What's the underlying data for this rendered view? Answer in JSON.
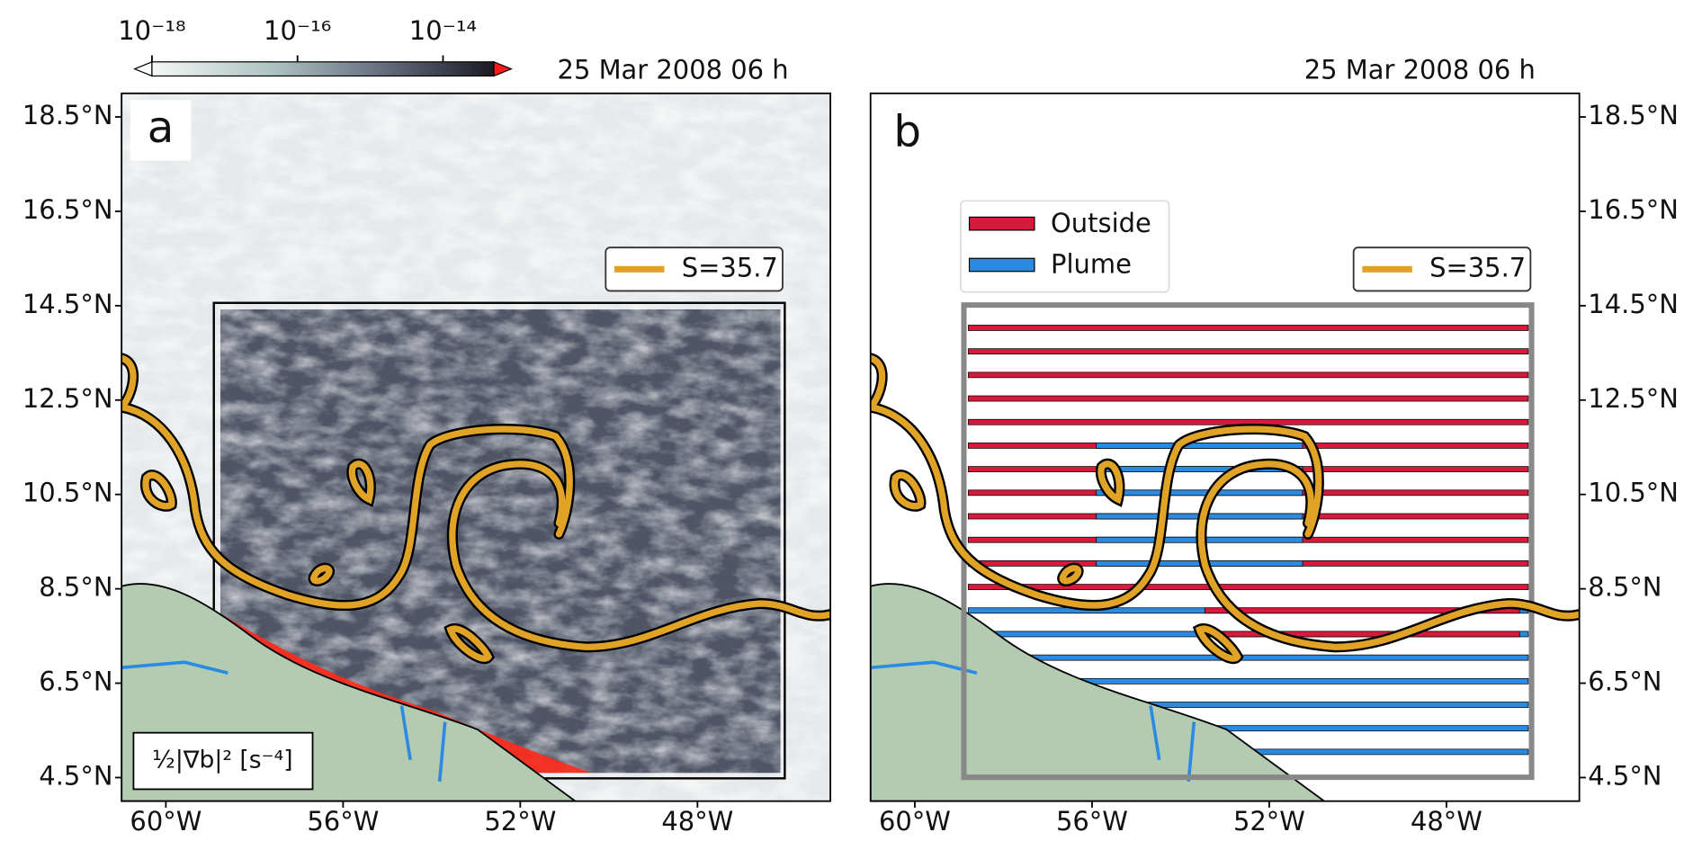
{
  "colorbar": {
    "label": "½|∇b|² [s⁻⁴]",
    "log": true,
    "lim": [
      1e-18,
      5e-14
    ],
    "ticks": [
      {
        "value": 1e-18,
        "label": "10⁻¹⁸"
      },
      {
        "value": 1e-16,
        "label": "10⁻¹⁶"
      },
      {
        "value": 1e-14,
        "label": "10⁻¹⁴"
      }
    ]
  },
  "panels": [
    {
      "label": "a",
      "date": "25 Mar 2008 06 h",
      "ytick_side": "left",
      "xlim": [
        -61,
        -45
      ],
      "ylim": [
        4,
        19
      ],
      "xticks": [
        {
          "value": -60,
          "label": "60°W"
        },
        {
          "value": -56,
          "label": "56°W"
        },
        {
          "value": -52,
          "label": "52°W"
        },
        {
          "value": -48,
          "label": "48°W"
        }
      ],
      "yticks": [
        {
          "value": 18.5,
          "label": "18.5°N"
        },
        {
          "value": 16.5,
          "label": "16.5°N"
        },
        {
          "value": 14.5,
          "label": "14.5°N"
        },
        {
          "value": 12.5,
          "label": "12.5°N"
        },
        {
          "value": 10.5,
          "label": "10.5°N"
        },
        {
          "value": 8.5,
          "label": "8.5°N"
        },
        {
          "value": 6.5,
          "label": "6.5°N"
        },
        {
          "value": 4.5,
          "label": "4.5°N"
        }
      ],
      "contour_legend": {
        "name": "S=35.7",
        "color": "#e0a326"
      }
    },
    {
      "label": "b",
      "date": "25 Mar 2008 06 h",
      "ytick_side": "right",
      "xlim": [
        -61,
        -45
      ],
      "ylim": [
        4,
        19
      ],
      "xticks": [
        {
          "value": -60,
          "label": "60°W"
        },
        {
          "value": -56,
          "label": "56°W"
        },
        {
          "value": -52,
          "label": "52°W"
        },
        {
          "value": -48,
          "label": "48°W"
        }
      ],
      "yticks": [
        {
          "value": 18.5,
          "label": "18.5°N"
        },
        {
          "value": 16.5,
          "label": "16.5°N"
        },
        {
          "value": 14.5,
          "label": "14.5°N"
        },
        {
          "value": 12.5,
          "label": "12.5°N"
        },
        {
          "value": 10.5,
          "label": "10.5°N"
        },
        {
          "value": 8.5,
          "label": "8.5°N"
        },
        {
          "value": 6.5,
          "label": "6.5°N"
        },
        {
          "value": 4.5,
          "label": "4.5°N"
        }
      ],
      "contour_legend": {
        "name": "S=35.7",
        "color": "#e0a326"
      },
      "class_legend": [
        {
          "name": "Outside",
          "color": "#d7193c"
        },
        {
          "name": "Plume",
          "color": "#2b8be0"
        }
      ]
    }
  ]
}
